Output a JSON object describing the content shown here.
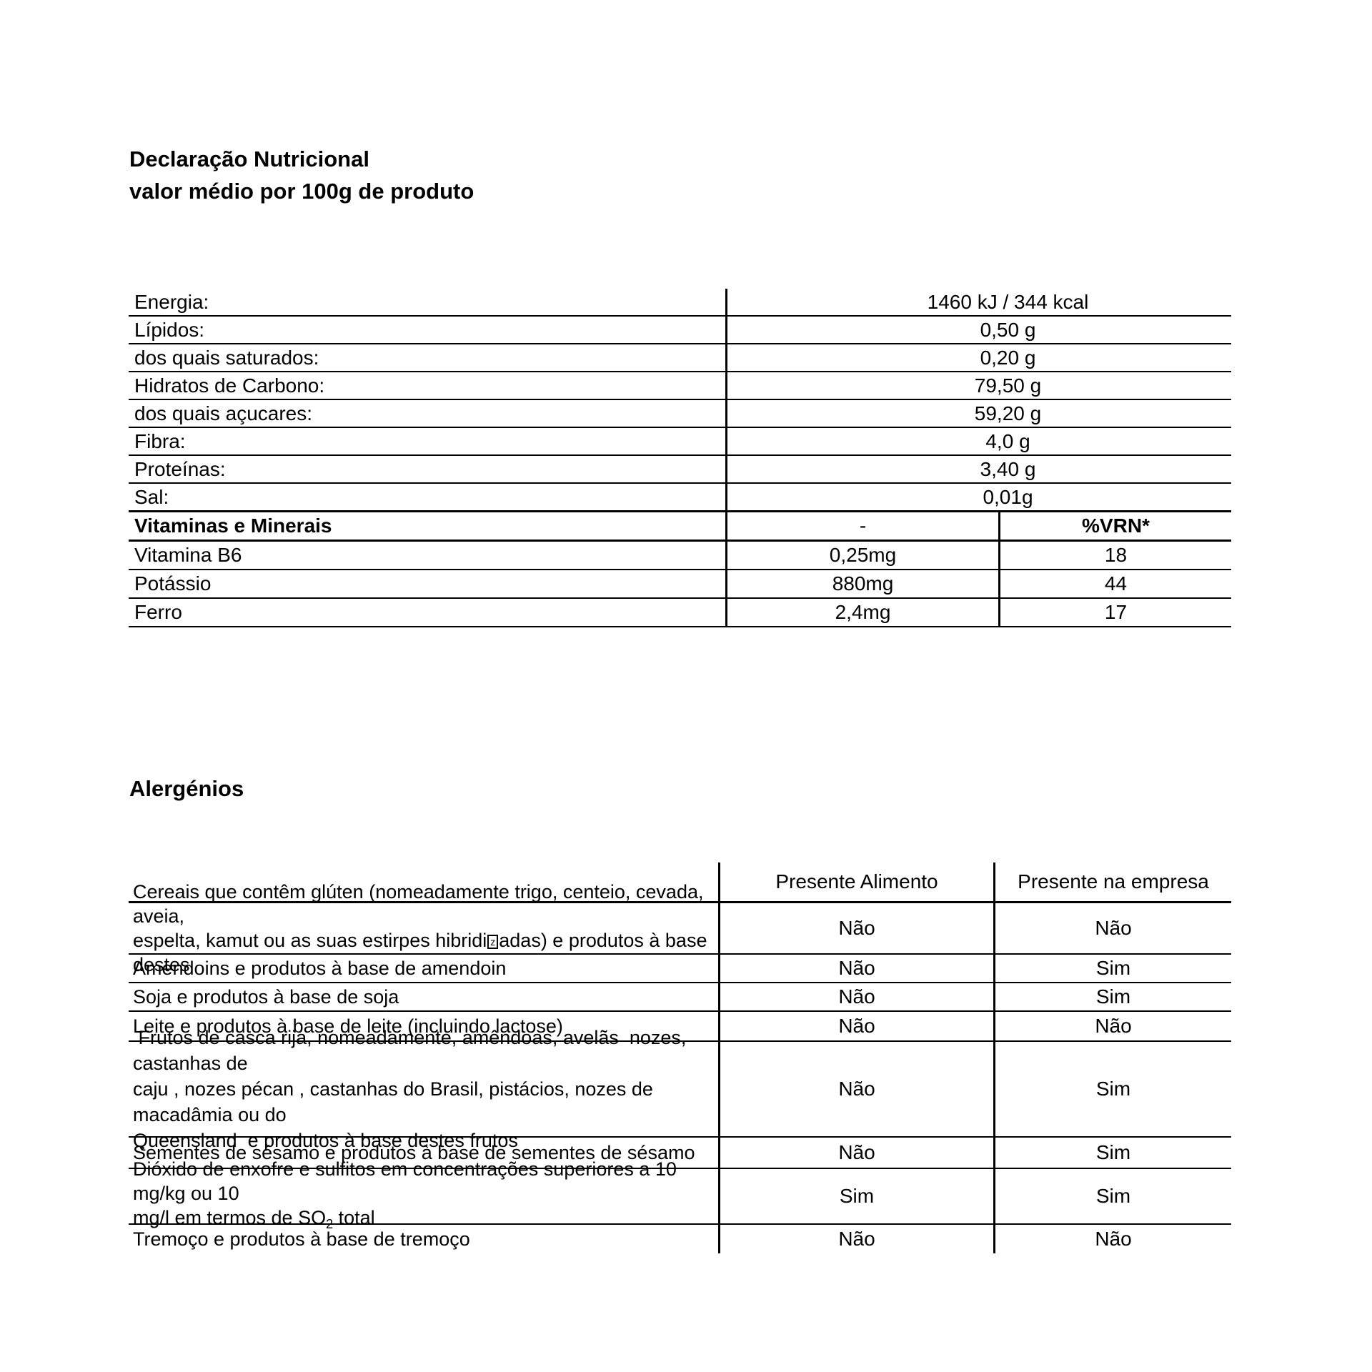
{
  "document": {
    "title_line1": "Declaração Nutricional",
    "title_line2": "valor médio por 100g de produto",
    "allergens_heading": "Alergénios"
  },
  "colors": {
    "text": "#000000",
    "lines": "#000000",
    "background": "#ffffff"
  },
  "nutrition_table": {
    "macro_rows": [
      {
        "label": "Energia:",
        "value": "1460 kJ / 344 kcal"
      },
      {
        "label": "Lípidos:",
        "value": "0,50 g"
      },
      {
        "label": "dos quais saturados:",
        "value": "0,20 g"
      },
      {
        "label": "Hidratos de Carbono:",
        "value": "79,50 g"
      },
      {
        "label": "dos quais açucares:",
        "value": "59,20 g"
      },
      {
        "label": "Fibra:",
        "value": "4,0 g"
      },
      {
        "label": "Proteínas:",
        "value": "3,40 g"
      },
      {
        "label": "Sal:",
        "value": "0,01g"
      }
    ],
    "vitamins_header": {
      "label": "Vitaminas e Minerais",
      "value": "-",
      "vrn": "%VRN*"
    },
    "vitamin_rows": [
      {
        "label": "Vitamina B6",
        "value": "0,25mg",
        "vrn": "18"
      },
      {
        "label": "Potássio",
        "value": "880mg",
        "vrn": "44"
      },
      {
        "label": "Ferro",
        "value": "2,4mg",
        "vrn": "17"
      }
    ]
  },
  "allergens_table": {
    "header": {
      "food": "Presente Alimento",
      "company": "Presente na empresa"
    },
    "rows": [
      {
        "line1": "Cereais que contêm glúten (nomeadamente trigo, centeio, cevada, aveia,",
        "line2a": "espelta, kamut ou as suas estirpes hibridi",
        "boxed": "z",
        "line2b": "adas) e produtos à base destes",
        "food": "Não",
        "company": "Não"
      },
      {
        "label": "Amendoins e produtos à base de amendoin",
        "food": "Não",
        "company": "Sim"
      },
      {
        "label": "Soja e produtos à base de soja",
        "food": "Não",
        "company": "Sim"
      },
      {
        "label": "Leite e produtos à base de leite (incluindo lactose)",
        "food": "Não",
        "company": "Não"
      },
      {
        "line1": " Frutos de casca rija, nomeadamente, amêndoas, avelãs  nozes, castanhas de",
        "line2": "caju , nozes pécan , castanhas do Brasil, pistácios, nozes de macadâmia ou do",
        "line3": "Queensland  e produtos à base destes frutos",
        "food": "Não",
        "company": "Sim"
      },
      {
        "label": "Sementes de sésamo e produtos à base de sementes de sésamo",
        "food": "Não",
        "company": "Sim"
      },
      {
        "line1": "Dióxido de enxofre e sulfitos em concentrações superiores a 10 mg/kg ou 10",
        "line2a": "mg/l em termos de SO",
        "sub": "2",
        "line2b": " total",
        "food": "Sim",
        "company": "Sim"
      },
      {
        "label": "Tremoço e produtos à base de tremoço",
        "food": "Não",
        "company": "Não"
      }
    ]
  }
}
